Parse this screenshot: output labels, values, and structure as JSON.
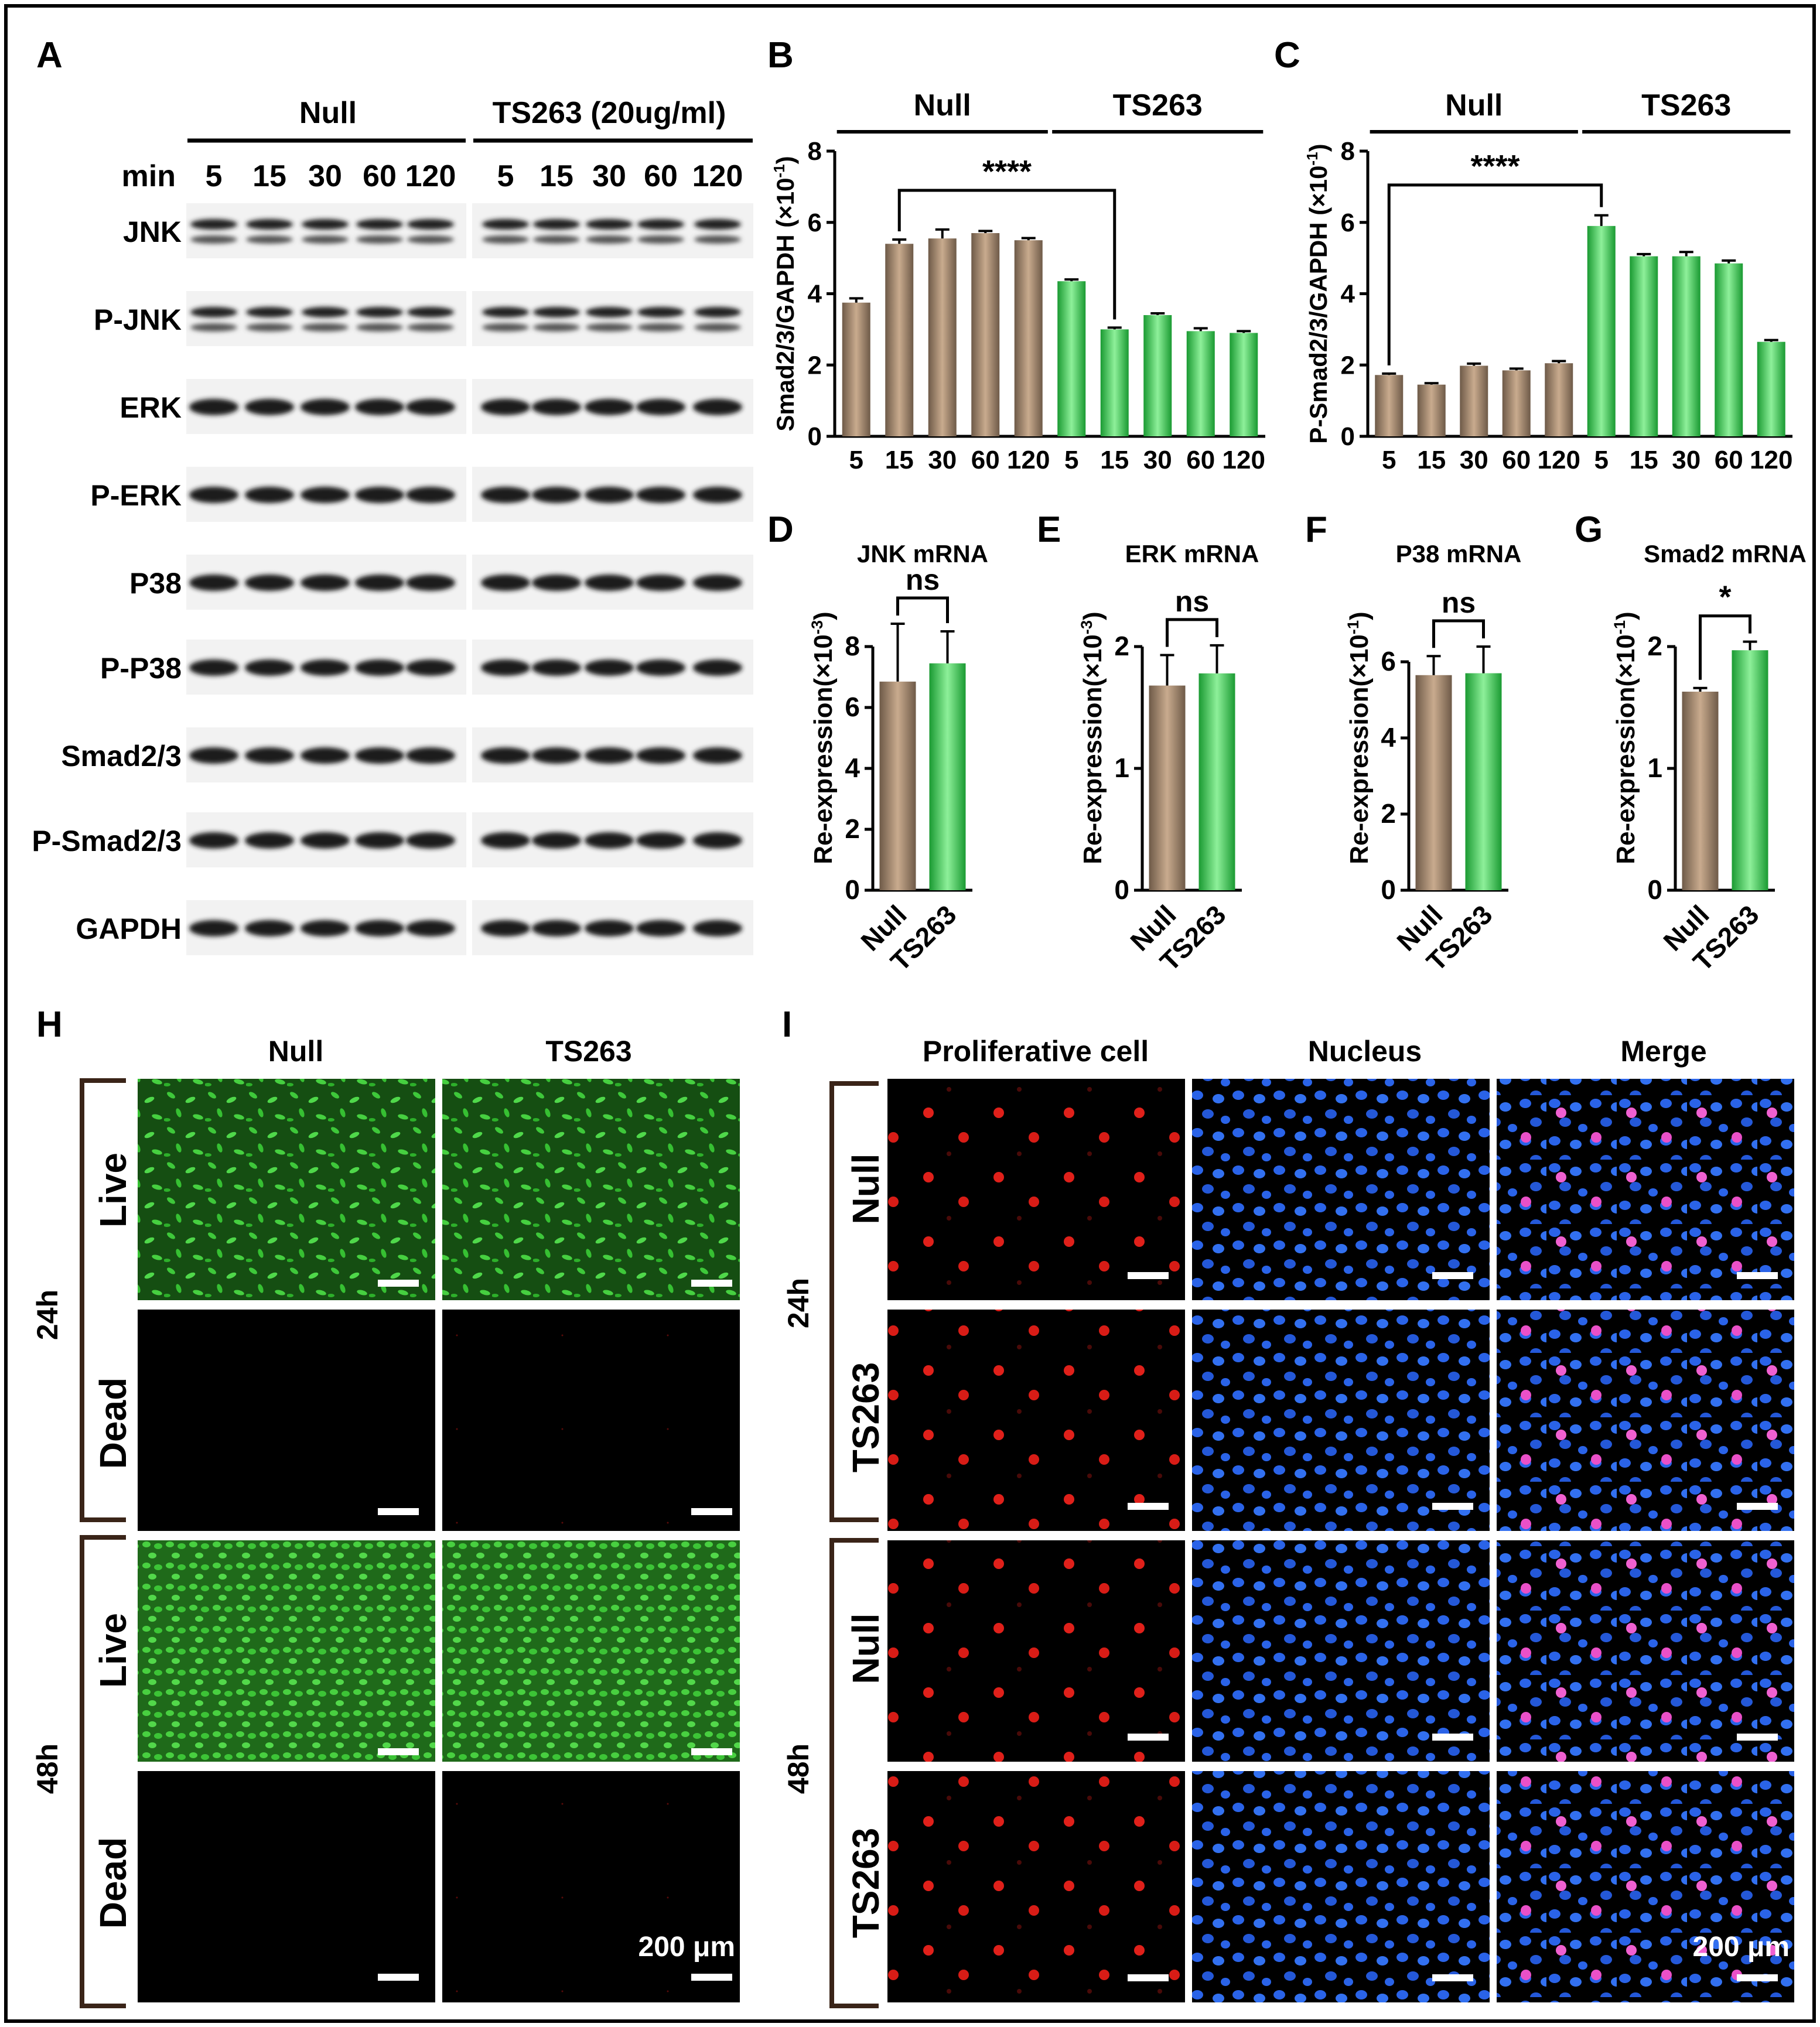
{
  "panel_letters": [
    "A",
    "B",
    "C",
    "D",
    "E",
    "F",
    "G",
    "H",
    "I"
  ],
  "panel_A": {
    "groups": [
      "Null",
      "TS263 (20ug/ml)"
    ],
    "time_label": "min",
    "times": [
      "5",
      "15",
      "30",
      "60",
      "120"
    ],
    "proteins": [
      "JNK",
      "P-JNK",
      "ERK",
      "P-ERK",
      "P38",
      "P-P38",
      "Smad2/3",
      "P-Smad2/3",
      "GAPDH"
    ]
  },
  "panel_H": {
    "columns": [
      "Null",
      "TS263"
    ],
    "timepoints": [
      "24h",
      "48h"
    ],
    "rows": [
      "Live",
      "Dead",
      "Live",
      "Dead"
    ],
    "scale_bar": "200 μm"
  },
  "panel_I": {
    "columns": [
      "Proliferative cell",
      "Nucleus",
      "Merge"
    ],
    "timepoints": [
      "24h",
      "48h"
    ],
    "rows": [
      "Null",
      "TS263",
      "Null",
      "TS263"
    ],
    "scale_bar": "200 μm"
  },
  "colors": {
    "null_bar": "#a88a6e",
    "ts263_bar": "#2ec24a",
    "live_green": "#2fb02a",
    "red_cell": "#e0201a",
    "blue_nucleus": "#2a63e8",
    "merge_pink": "#f060d0"
  },
  "chart_data": [
    {
      "id": "B",
      "type": "bar",
      "ylabel": "Smad2/3/GAPDH (×10",
      "ylabel_sup": "-1",
      "ylabel_close": ")",
      "groups": [
        "Null",
        "TS263"
      ],
      "categories": [
        "5",
        "15",
        "30",
        "60",
        "120",
        "5",
        "15",
        "30",
        "60",
        "120"
      ],
      "values": [
        3.75,
        5.4,
        5.55,
        5.7,
        5.5,
        4.35,
        3.0,
        3.4,
        2.95,
        2.9
      ],
      "errors": [
        0.12,
        0.12,
        0.25,
        0.06,
        0.06,
        0.05,
        0.05,
        0.05,
        0.08,
        0.05
      ],
      "series_color": [
        "null",
        "null",
        "null",
        "null",
        "null",
        "ts263",
        "ts263",
        "ts263",
        "ts263",
        "ts263"
      ],
      "ylim": [
        0,
        8
      ],
      "yticks": [
        0,
        2,
        4,
        6,
        8
      ],
      "sig": {
        "label": "****",
        "from": 1,
        "to": 6
      }
    },
    {
      "id": "C",
      "type": "bar",
      "ylabel": "P-Smad2/3/GAPDH (×10",
      "ylabel_sup": "-1",
      "ylabel_close": ")",
      "groups": [
        "Null",
        "TS263"
      ],
      "categories": [
        "5",
        "15",
        "30",
        "60",
        "120",
        "5",
        "15",
        "30",
        "60",
        "120"
      ],
      "values": [
        1.72,
        1.45,
        1.98,
        1.85,
        2.05,
        5.9,
        5.05,
        5.05,
        4.85,
        2.65
      ],
      "errors": [
        0.04,
        0.04,
        0.06,
        0.05,
        0.06,
        0.3,
        0.06,
        0.12,
        0.08,
        0.05
      ],
      "series_color": [
        "null",
        "null",
        "null",
        "null",
        "null",
        "ts263",
        "ts263",
        "ts263",
        "ts263",
        "ts263"
      ],
      "ylim": [
        0,
        8
      ],
      "yticks": [
        0,
        2,
        4,
        6,
        8
      ],
      "sig": {
        "label": "****",
        "from": 0,
        "to": 5
      }
    },
    {
      "id": "D",
      "type": "bar",
      "title": "JNK mRNA",
      "ylabel": "Re-expression(×10",
      "ylabel_sup": "-3",
      "ylabel_close": ")",
      "categories": [
        "Null",
        "TS263"
      ],
      "values": [
        6.85,
        7.45
      ],
      "errors": [
        1.9,
        1.05
      ],
      "ylim": [
        0,
        10
      ],
      "yticks": [
        0,
        2,
        4,
        6,
        8
      ],
      "sig": {
        "label": "ns",
        "from": 0,
        "to": 1
      }
    },
    {
      "id": "E",
      "type": "bar",
      "title": "ERK mRNA",
      "ylabel": "Re-expression(×10",
      "ylabel_sup": "-3",
      "ylabel_close": ")",
      "categories": [
        "Null",
        "TS263"
      ],
      "values": [
        1.68,
        1.78
      ],
      "errors": [
        0.25,
        0.23
      ],
      "ylim": [
        0,
        2.5
      ],
      "yticks": [
        0,
        1,
        2
      ],
      "sig": {
        "label": "ns",
        "from": 0,
        "to": 1
      }
    },
    {
      "id": "F",
      "type": "bar",
      "title": "P38 mRNA",
      "ylabel": "Re-expression(×10",
      "ylabel_sup": "-1",
      "ylabel_close": ")",
      "categories": [
        "Null",
        "TS263"
      ],
      "values": [
        5.65,
        5.7
      ],
      "errors": [
        0.5,
        0.7
      ],
      "ylim": [
        0,
        8
      ],
      "yticks": [
        0,
        2,
        4,
        6
      ],
      "sig": {
        "label": "ns",
        "from": 0,
        "to": 1
      }
    },
    {
      "id": "G",
      "type": "bar",
      "title": "Smad2 mRNA",
      "ylabel": "Re-expression(×10",
      "ylabel_sup": "-1",
      "ylabel_close": ")",
      "categories": [
        "Null",
        "TS263"
      ],
      "values": [
        1.63,
        1.97
      ],
      "errors": [
        0.03,
        0.07
      ],
      "ylim": [
        0,
        2.5
      ],
      "yticks": [
        0,
        1,
        2
      ],
      "sig": {
        "label": "*",
        "from": 0,
        "to": 1
      }
    }
  ]
}
